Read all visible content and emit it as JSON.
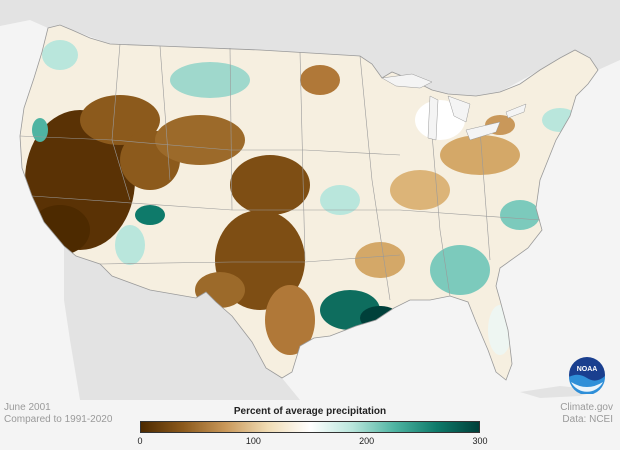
{
  "footer": {
    "date": "June 2001",
    "baseline": "Compared to 1991-2020",
    "source": "Climate.gov",
    "data": "Data: NCEI"
  },
  "legend": {
    "title": "Percent of average precipitation",
    "ticks": [
      "0",
      "100",
      "200",
      "300"
    ],
    "tick_values": [
      0,
      100,
      200,
      300
    ],
    "range": [
      0,
      300
    ],
    "colors": [
      "#4d2a00",
      "#8c5a1c",
      "#c9985a",
      "#f0dcb4",
      "#ffffff",
      "#b9e6dc",
      "#4fb4a2",
      "#0e7a6a",
      "#00403a"
    ]
  },
  "logo": {
    "name": "noaa-logo",
    "text": "NOAA"
  },
  "map": {
    "land_color": "#ffffff",
    "neighbor_color": "#e3e3e3",
    "water_color": "#f4f4f4",
    "border_color": "#9a9a9a"
  }
}
